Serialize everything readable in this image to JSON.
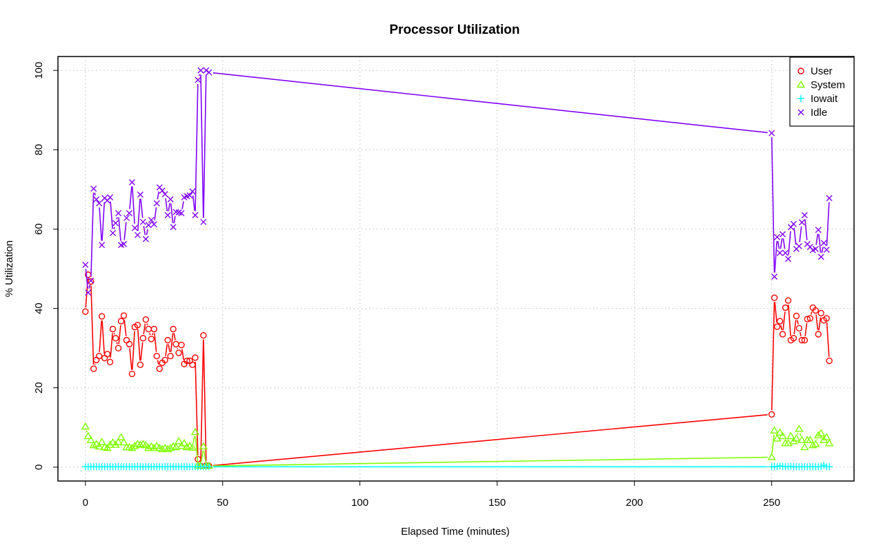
{
  "chart_data": {
    "type": "line",
    "title": "Processor Utilization",
    "xlabel": "Elapsed Time (minutes)",
    "ylabel": "% Utilization",
    "xlim": [
      -10,
      280
    ],
    "ylim": [
      -3.5,
      103.5
    ],
    "xticks": [
      0,
      50,
      100,
      150,
      200,
      250
    ],
    "yticks": [
      0,
      20,
      40,
      60,
      80,
      100
    ],
    "grid": true,
    "legend_position": "top-right",
    "x": [
      0,
      1,
      2,
      3,
      4,
      5,
      6,
      7,
      8,
      9,
      10,
      11,
      12,
      13,
      14,
      15,
      16,
      17,
      18,
      19,
      20,
      21,
      22,
      23,
      24,
      25,
      26,
      27,
      28,
      29,
      30,
      31,
      32,
      33,
      34,
      35,
      36,
      37,
      38,
      39,
      40,
      41,
      42,
      43,
      44,
      45,
      250,
      251,
      252,
      253,
      254,
      255,
      256,
      257,
      258,
      259,
      260,
      261,
      262,
      263,
      264,
      265,
      266,
      267,
      268,
      269,
      270,
      271
    ],
    "series": [
      {
        "name": "User",
        "color": "#FF0000",
        "marker": "circle",
        "values": [
          39.2,
          48.5,
          46.8,
          24.8,
          27.0,
          28.0,
          38.0,
          27.5,
          28.5,
          26.5,
          34.8,
          32.5,
          30.0,
          36.8,
          38.2,
          32.0,
          31.0,
          23.5,
          35.3,
          35.8,
          25.8,
          32.5,
          37.2,
          34.8,
          32.3,
          34.8,
          28.0,
          24.8,
          26.3,
          27.0,
          32.0,
          28.0,
          34.8,
          31.0,
          28.8,
          30.8,
          26.0,
          26.8,
          26.8,
          25.8,
          27.6,
          2.0,
          0.3,
          33.2,
          0.4,
          0.3,
          13.3,
          42.7,
          35.4,
          36.8,
          33.5,
          40.2,
          42.0,
          32.0,
          32.5,
          38.1,
          35.0,
          32.0,
          32.0,
          37.3,
          37.5,
          40.2,
          39.5,
          33.5,
          38.8,
          37.0,
          37.5,
          26.8
        ]
      },
      {
        "name": "System",
        "color": "#80FF00",
        "marker": "triangle",
        "values": [
          10.2,
          7.8,
          6.8,
          5.5,
          5.8,
          5.2,
          6.3,
          5.0,
          4.8,
          5.6,
          6.2,
          5.6,
          6.3,
          7.5,
          6.2,
          5.0,
          5.0,
          4.8,
          5.3,
          5.8,
          5.6,
          5.8,
          5.5,
          4.8,
          5.2,
          4.8,
          5.3,
          4.8,
          4.5,
          4.8,
          4.5,
          4.8,
          5.2,
          5.0,
          6.5,
          5.3,
          6.0,
          5.0,
          5.3,
          4.9,
          8.8,
          0.4,
          0.3,
          5.2,
          0.3,
          0.3,
          2.5,
          9.2,
          7.2,
          8.7,
          7.8,
          6.0,
          6.0,
          7.8,
          6.5,
          7.2,
          9.6,
          6.8,
          5.0,
          6.8,
          6.8,
          5.5,
          5.8,
          8.0,
          8.5,
          6.8,
          7.5,
          6.0
        ]
      },
      {
        "name": "Iowait",
        "color": "#00FFFF",
        "marker": "plus",
        "values": [
          0.1,
          0.1,
          0.1,
          0.1,
          0.1,
          0.1,
          0.1,
          0.1,
          0.1,
          0.1,
          0.1,
          0.1,
          0.1,
          0.1,
          0.1,
          0.1,
          0.1,
          0.1,
          0.1,
          0.1,
          0.1,
          0.1,
          0.1,
          0.1,
          0.1,
          0.1,
          0.1,
          0.1,
          0.1,
          0.1,
          0.1,
          0.1,
          0.1,
          0.1,
          0.1,
          0.1,
          0.1,
          0.1,
          0.1,
          0.1,
          0.1,
          0.1,
          0.1,
          0.1,
          0.1,
          0.1,
          0.1,
          0.2,
          0.1,
          0.3,
          0.2,
          0.1,
          0.1,
          0.2,
          0.1,
          0.1,
          0.1,
          0.1,
          0.1,
          0.1,
          0.1,
          0.1,
          0.1,
          0.1,
          0.1,
          0.5,
          0.1,
          0.1
        ]
      },
      {
        "name": "Idle",
        "color": "#8000FF",
        "marker": "x",
        "values": [
          51.0,
          44.0,
          47.0,
          70.2,
          67.5,
          66.5,
          56.0,
          67.8,
          67.2,
          68.0,
          59.0,
          61.5,
          64.0,
          56.0,
          56.2,
          62.8,
          64.0,
          71.8,
          60.3,
          58.5,
          68.7,
          61.8,
          57.5,
          61.0,
          62.3,
          61.2,
          66.5,
          70.5,
          69.7,
          68.8,
          63.5,
          67.5,
          60.5,
          64.3,
          64.2,
          64.0,
          68.0,
          68.3,
          68.5,
          69.5,
          63.5,
          97.6,
          100.0,
          61.8,
          100.0,
          99.5,
          84.2,
          48.0,
          58.0,
          54.0,
          58.7,
          54.0,
          52.5,
          60.5,
          61.3,
          55.0,
          55.7,
          61.7,
          63.5,
          56.2,
          55.5,
          54.7,
          55.0,
          59.8,
          53.0,
          56.5,
          54.8,
          67.8
        ]
      }
    ]
  }
}
